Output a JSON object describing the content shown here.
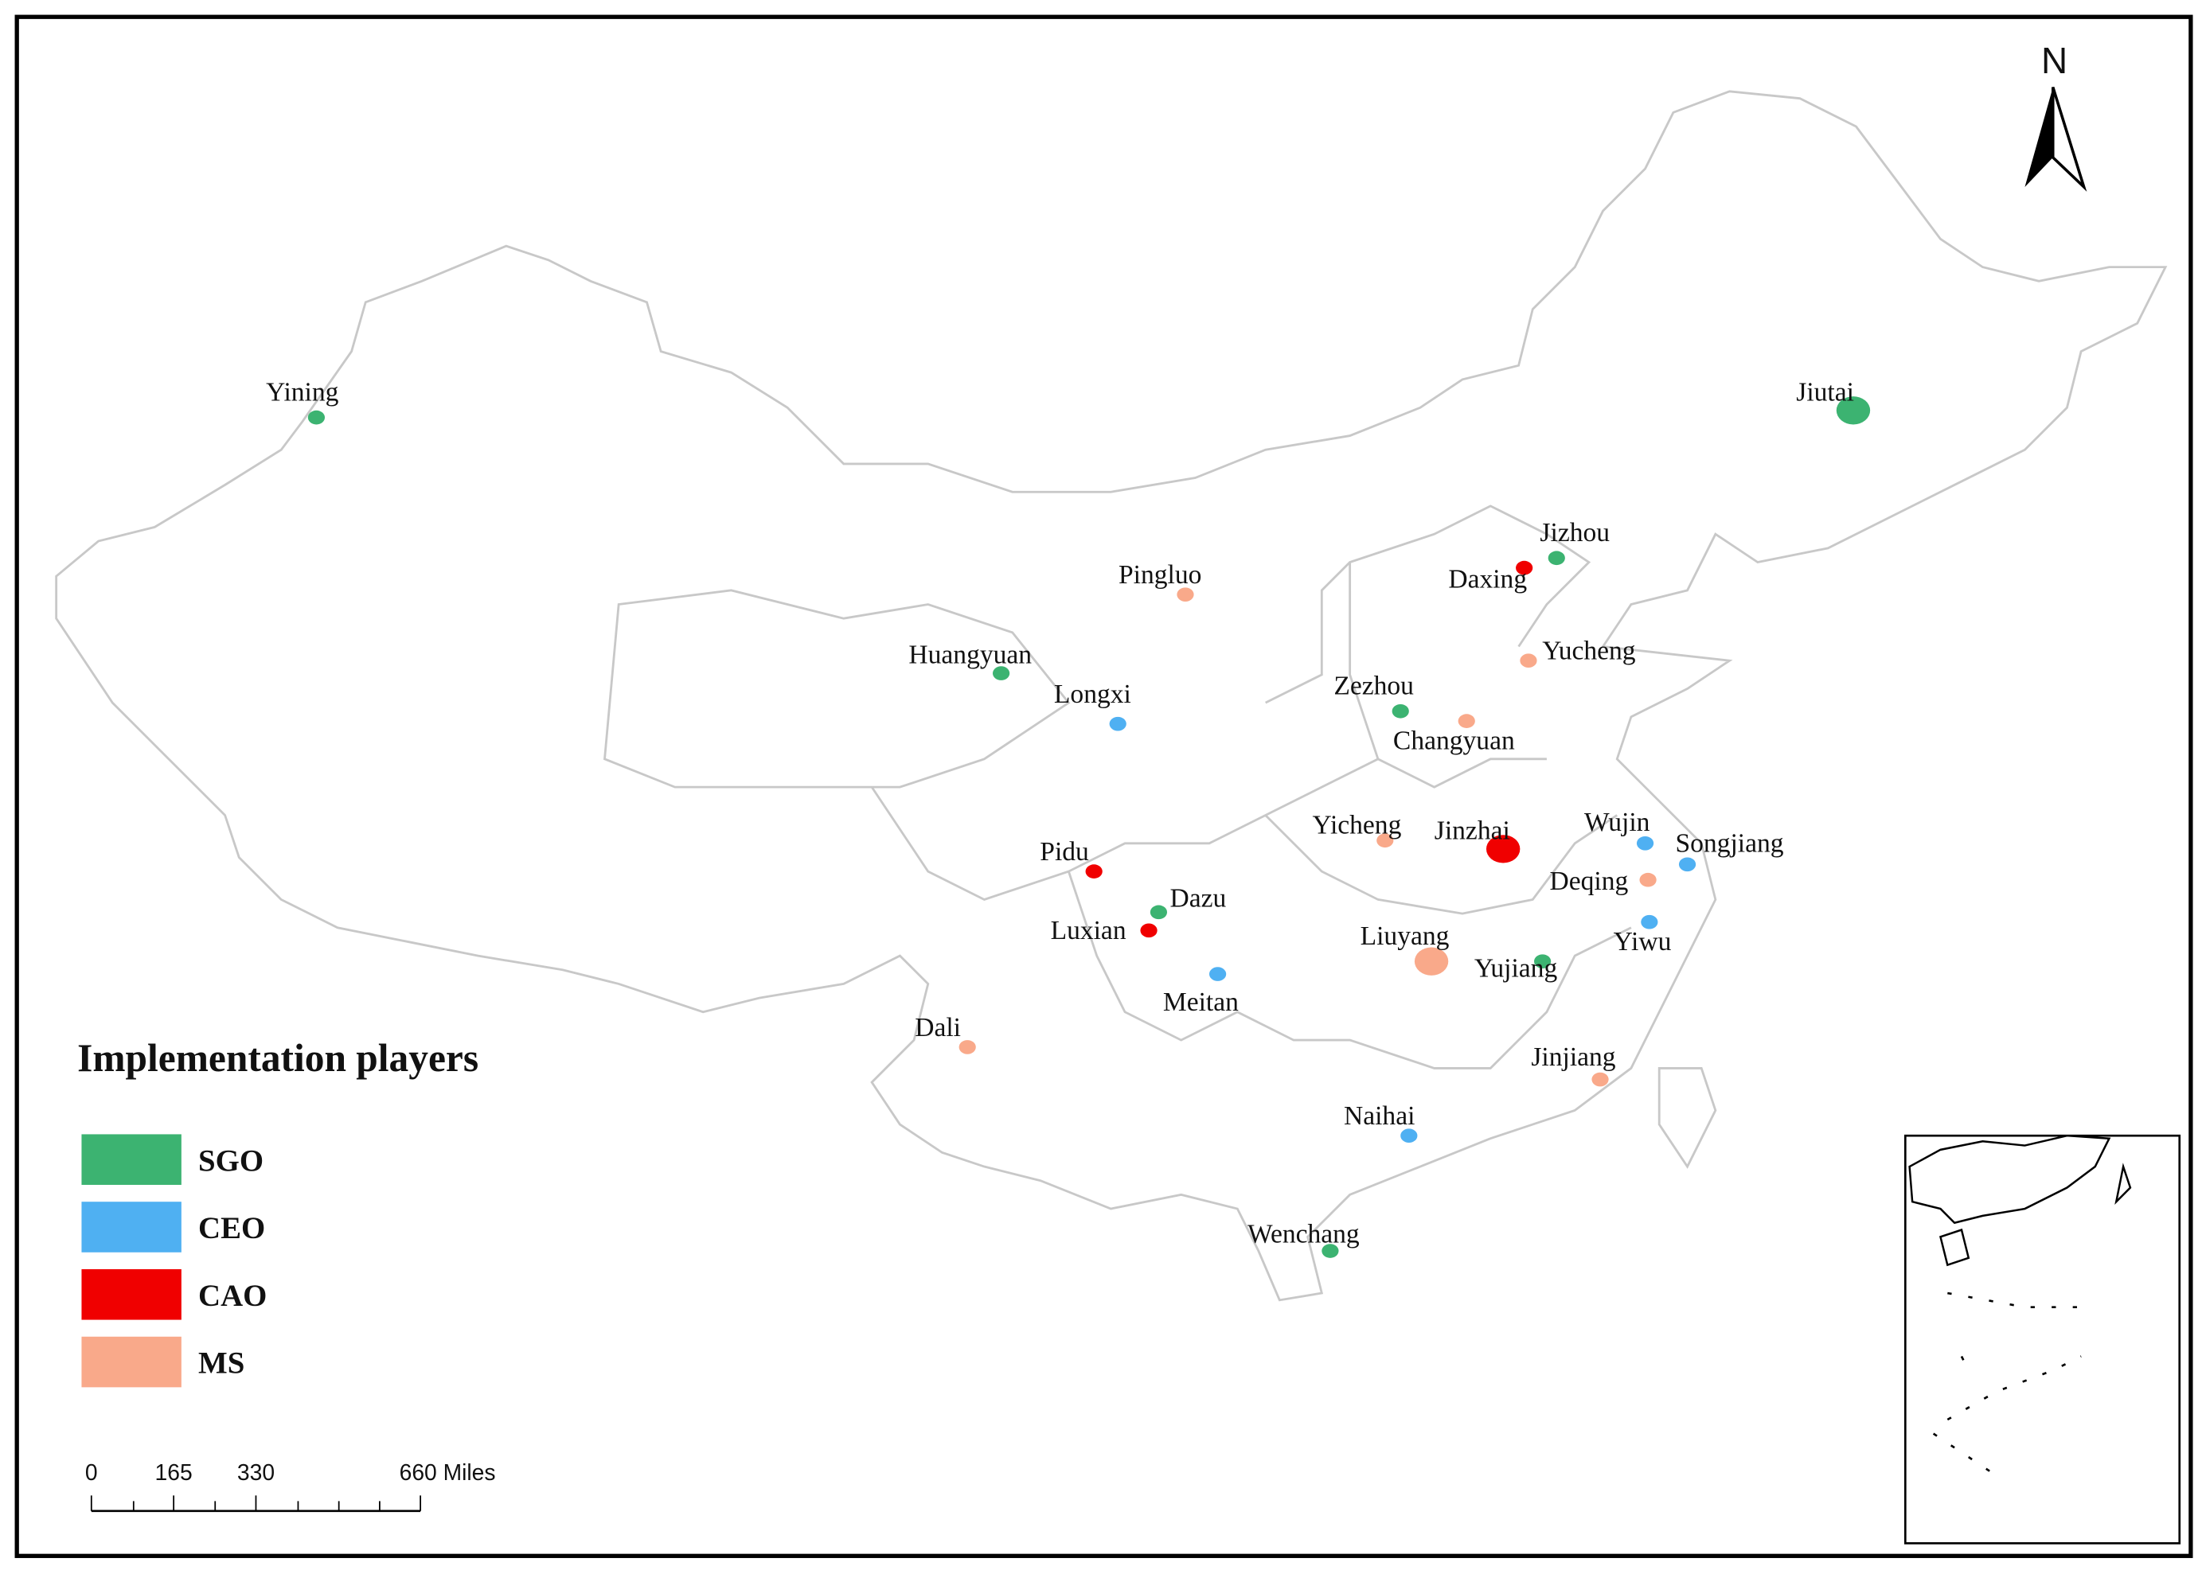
{
  "north": "N",
  "legend": {
    "title": "Implementation players",
    "items": [
      {
        "name": "SGO",
        "color": "#3cb371",
        "places": [
          "Yining",
          "Jiutai",
          "Jizhou",
          "Huangyuan",
          "Zezhou",
          "Dazu",
          "Yujiang",
          "Wenchang"
        ]
      },
      {
        "name": "CEO",
        "color": "#4fb0f2",
        "places": [
          "Longxi",
          "Wujin",
          "Songjiang",
          "Yiwu",
          "Meitan",
          "Naihai"
        ]
      },
      {
        "name": "CAO",
        "color": "#f00000",
        "places": [
          "Daxing",
          "Pidu",
          "Luxian",
          "Jinzhai"
        ]
      },
      {
        "name": "MS",
        "color": "#f9a98a",
        "places": [
          "Pingluo",
          "Yucheng",
          "Changyuan",
          "Yicheng",
          "Deqing",
          "Liuyang",
          "Dali",
          "Jinjiang"
        ]
      }
    ]
  },
  "scale_bar": {
    "ticks": [
      0,
      165,
      330,
      {
        "value": 660,
        "label": "660 Miles"
      }
    ]
  }
}
